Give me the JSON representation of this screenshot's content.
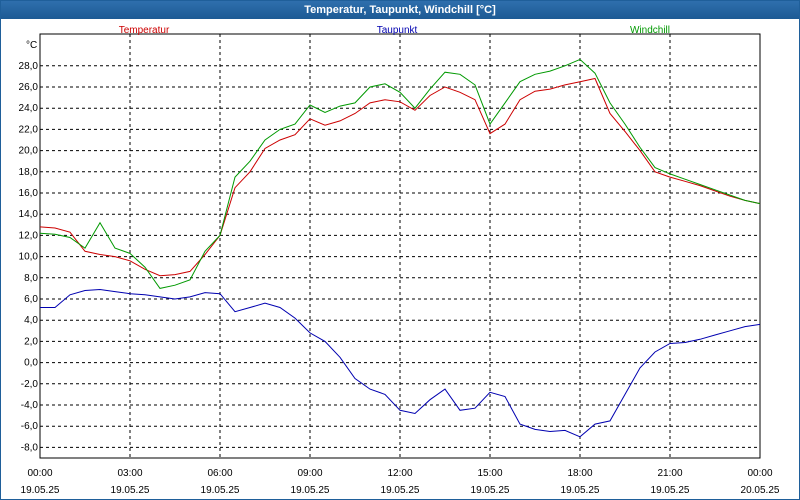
{
  "window": {
    "title": "Temperatur, Taupunkt, Windchill [°C]"
  },
  "colors": {
    "temperatur": "#cc0000",
    "taupunkt": "#0000b0",
    "windchill": "#009900",
    "grid": "#000000"
  },
  "chart_data": {
    "type": "line",
    "title": "Temperatur, Taupunkt, Windchill [°C]",
    "ylabel": "°C",
    "ylim": [
      -9,
      31
    ],
    "y_ticks": [
      28,
      26,
      24,
      22,
      20,
      18,
      16,
      14,
      12,
      10,
      8,
      6,
      4,
      2,
      0,
      -2,
      -4,
      -6,
      -8
    ],
    "y_tick_labels": [
      "28,0",
      "26,0",
      "24,0",
      "22,0",
      "20,0",
      "18,0",
      "16,0",
      "14,0",
      "12,0",
      "10,0",
      "8,0",
      "6,0",
      "4,0",
      "2,0",
      "0,0",
      "-2,0",
      "-4,0",
      "-6,0",
      "-8,0"
    ],
    "x_ticks": [
      {
        "time": "00:00",
        "date": "19.05.25"
      },
      {
        "time": "03:00",
        "date": "19.05.25"
      },
      {
        "time": "06:00",
        "date": "19.05.25"
      },
      {
        "time": "09:00",
        "date": "19.05.25"
      },
      {
        "time": "12:00",
        "date": "19.05.25"
      },
      {
        "time": "15:00",
        "date": "19.05.25"
      },
      {
        "time": "18:00",
        "date": "19.05.25"
      },
      {
        "time": "21:00",
        "date": "19.05.25"
      },
      {
        "time": "00:00",
        "date": "20.05.25"
      }
    ],
    "x_hours": [
      0,
      0.5,
      1,
      1.5,
      2,
      2.5,
      3,
      3.5,
      4,
      4.5,
      5,
      5.5,
      6,
      6.5,
      7,
      7.5,
      8,
      8.5,
      9,
      9.5,
      10,
      10.5,
      11,
      11.5,
      12,
      12.5,
      13,
      13.5,
      14,
      14.5,
      15,
      15.5,
      16,
      16.5,
      17,
      17.5,
      18,
      18.5,
      19,
      19.5,
      20,
      20.5,
      21,
      21.5,
      22,
      22.5,
      23,
      23.5,
      24
    ],
    "grid": true,
    "series": [
      {
        "name": "Temperatur",
        "key": "temperatur",
        "values": [
          12.8,
          12.7,
          12.3,
          10.5,
          10.2,
          10.0,
          9.6,
          8.8,
          8.2,
          8.3,
          8.6,
          10.2,
          12.0,
          16.5,
          18.0,
          20.2,
          21.0,
          21.5,
          23.0,
          22.4,
          22.8,
          23.5,
          24.5,
          24.8,
          24.6,
          23.8,
          25.2,
          26.0,
          25.5,
          24.8,
          21.6,
          22.5,
          24.8,
          25.6,
          25.8,
          26.2,
          26.5,
          26.8,
          23.5,
          21.8,
          20.0,
          18.0,
          17.5,
          17.1,
          16.7,
          16.2,
          15.7,
          15.3,
          15.0
        ]
      },
      {
        "name": "Taupunkt",
        "key": "taupunkt",
        "values": [
          5.2,
          5.2,
          6.4,
          6.8,
          6.9,
          6.7,
          6.5,
          6.4,
          6.2,
          6.0,
          6.2,
          6.6,
          6.5,
          4.8,
          5.2,
          5.6,
          5.2,
          4.2,
          2.8,
          2.0,
          0.5,
          -1.5,
          -2.5,
          -3.0,
          -4.5,
          -4.8,
          -3.5,
          -2.5,
          -4.5,
          -4.3,
          -2.8,
          -3.2,
          -5.8,
          -6.3,
          -6.5,
          -6.4,
          -7.0,
          -5.8,
          -5.5,
          -3.0,
          -0.5,
          1.0,
          1.8,
          1.9,
          2.2,
          2.6,
          3.0,
          3.4,
          3.6
        ]
      },
      {
        "name": "Windchill",
        "key": "windchill",
        "values": [
          12.2,
          12.1,
          11.8,
          10.8,
          13.2,
          10.8,
          10.3,
          9.0,
          7.0,
          7.3,
          7.8,
          10.5,
          12.0,
          17.5,
          19.0,
          21.0,
          22.0,
          22.5,
          24.3,
          23.6,
          24.2,
          24.5,
          26.0,
          26.3,
          25.5,
          24.0,
          25.8,
          27.4,
          27.2,
          26.2,
          22.5,
          24.5,
          26.5,
          27.2,
          27.5,
          28.0,
          28.6,
          27.3,
          24.5,
          22.5,
          20.3,
          18.4,
          17.8,
          17.3,
          16.8,
          16.3,
          15.8,
          15.3,
          15.0
        ]
      }
    ]
  }
}
